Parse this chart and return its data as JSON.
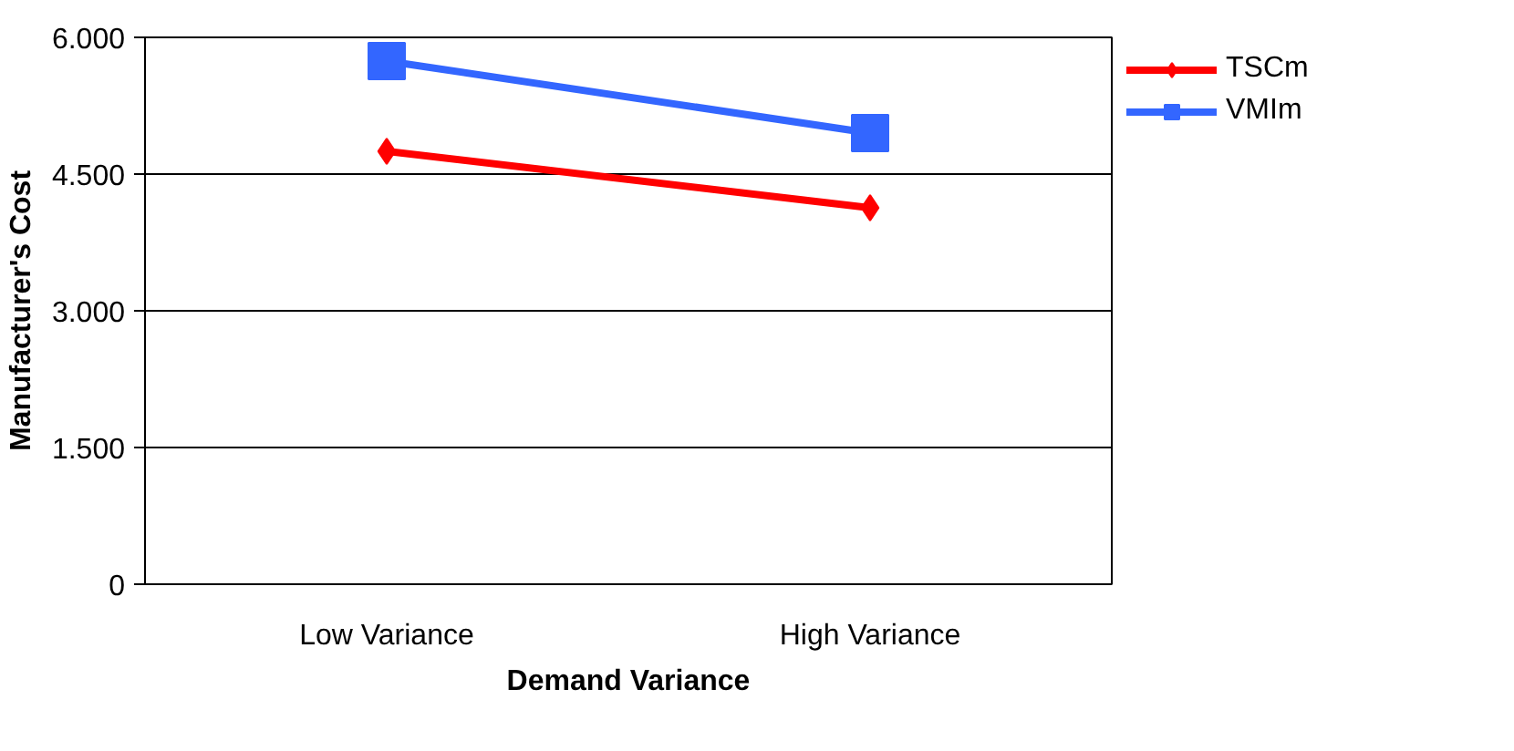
{
  "chart_data": {
    "type": "line",
    "xlabel": "Demand Variance",
    "ylabel": "Manufacturer's Cost",
    "categories": [
      "Low Variance",
      "High Variance"
    ],
    "series": [
      {
        "name": "TSCm",
        "color": "#ff0000",
        "values": [
          4750,
          4130
        ],
        "marker": "diamond"
      },
      {
        "name": "VMIm",
        "color": "#3366ff",
        "values": [
          5740,
          4950
        ],
        "marker": "square"
      }
    ],
    "ylim": [
      0,
      6000
    ],
    "yticks": [
      0,
      {
        "value": 1500,
        "label": "1.500"
      },
      {
        "value": 3000,
        "label": "3.000"
      },
      {
        "value": 4500,
        "label": "4.500"
      },
      {
        "value": 6000,
        "label": "6.000"
      }
    ],
    "grid": "y",
    "legend": "top right",
    "line_style": "solid"
  }
}
